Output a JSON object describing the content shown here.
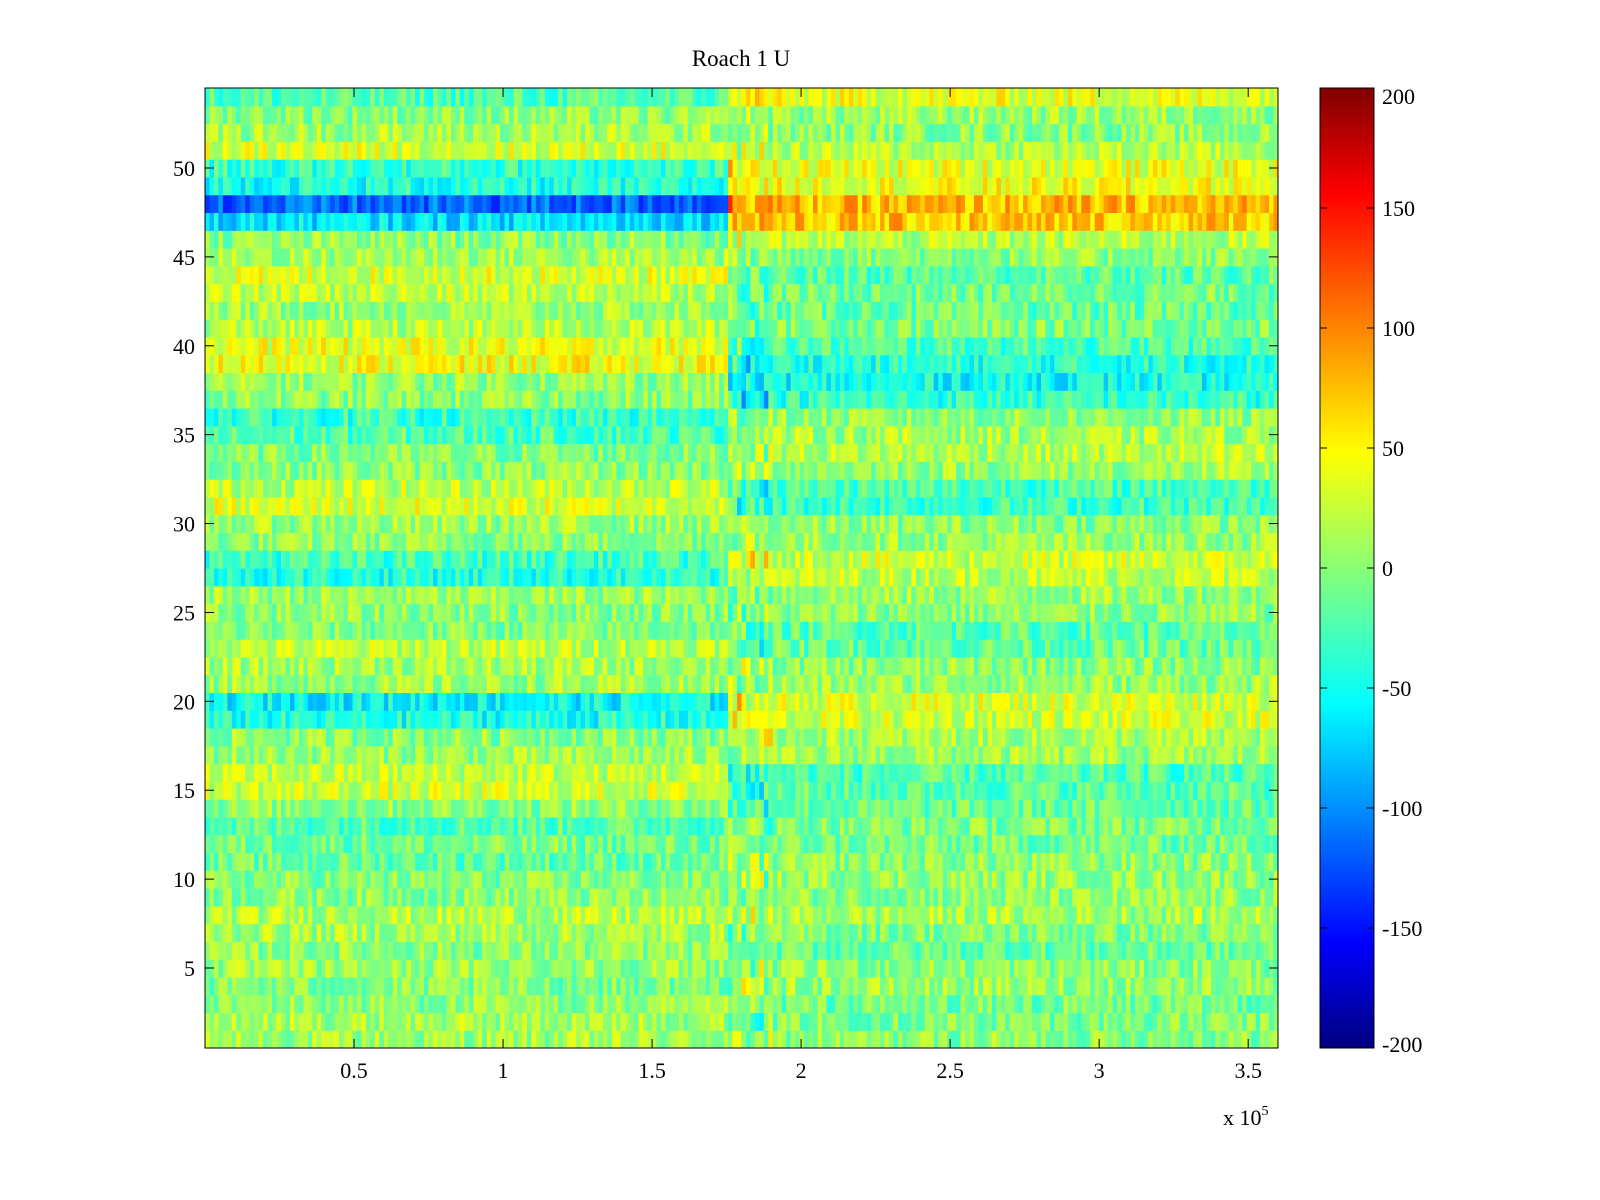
{
  "chart_data": {
    "type": "heatmap",
    "title": "Roach 1 U",
    "xlabel": "",
    "ylabel": "",
    "x_exponent_label": "x 10",
    "x_exponent_power": "5",
    "xlim": [
      0,
      3.6
    ],
    "ylim": [
      0.5,
      54.5
    ],
    "x_ticks": [
      0.5,
      1,
      1.5,
      2,
      2.5,
      3,
      3.5
    ],
    "x_tick_labels": [
      "0.5",
      "1",
      "1.5",
      "2",
      "2.5",
      "3",
      "3.5"
    ],
    "y_ticks": [
      5,
      10,
      15,
      20,
      25,
      30,
      35,
      40,
      45,
      50
    ],
    "y_tick_labels": [
      "5",
      "10",
      "15",
      "20",
      "25",
      "30",
      "35",
      "40",
      "45",
      "50"
    ],
    "n_rows": 54,
    "transition_x": 1.75,
    "colormap": "jet",
    "clim": [
      -200,
      200
    ],
    "colorbar_ticks": [
      -200,
      -150,
      -100,
      -50,
      0,
      50,
      100,
      150,
      200
    ],
    "colorbar_tick_labels": [
      "-200",
      "-150",
      "-100",
      "-50",
      "0",
      "50",
      "100",
      "150",
      "200"
    ],
    "row_means_before": [
      12,
      15,
      5,
      0,
      10,
      5,
      15,
      20,
      5,
      0,
      -10,
      -5,
      -15,
      5,
      30,
      25,
      10,
      5,
      -40,
      -50,
      10,
      15,
      25,
      0,
      5,
      10,
      -35,
      -25,
      5,
      10,
      35,
      25,
      5,
      0,
      -20,
      -30,
      5,
      10,
      45,
      40,
      20,
      10,
      25,
      35,
      15,
      5,
      -60,
      -110,
      -40,
      -30,
      35,
      15,
      5,
      -20
    ],
    "row_means_after": [
      5,
      0,
      -5,
      10,
      5,
      -10,
      0,
      15,
      5,
      10,
      5,
      -5,
      0,
      -10,
      -15,
      -20,
      10,
      15,
      30,
      35,
      10,
      5,
      -10,
      -15,
      5,
      10,
      25,
      30,
      10,
      5,
      -25,
      -20,
      10,
      20,
      15,
      5,
      -30,
      -45,
      -35,
      -20,
      0,
      -10,
      -5,
      -15,
      5,
      20,
      70,
      75,
      45,
      40,
      20,
      5,
      10,
      40
    ],
    "noise_amplitude": 30
  }
}
